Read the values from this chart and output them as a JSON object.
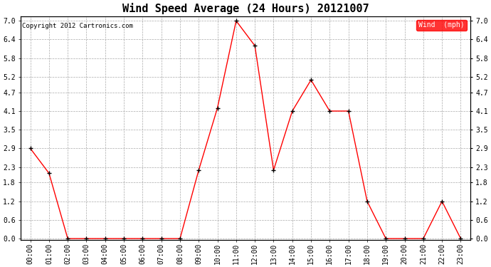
{
  "title": "Wind Speed Average (24 Hours) 20121007",
  "copyright_text": "Copyright 2012 Cartronics.com",
  "legend_label": "Wind  (mph)",
  "x_labels": [
    "00:00",
    "01:00",
    "02:00",
    "03:00",
    "04:00",
    "05:00",
    "06:00",
    "07:00",
    "08:00",
    "09:00",
    "10:00",
    "11:00",
    "12:00",
    "13:00",
    "14:00",
    "15:00",
    "16:00",
    "17:00",
    "18:00",
    "19:00",
    "20:00",
    "21:00",
    "22:00",
    "23:00"
  ],
  "y_values": [
    2.9,
    2.1,
    0.0,
    0.0,
    0.0,
    0.0,
    0.0,
    0.0,
    0.0,
    2.2,
    4.2,
    7.0,
    6.2,
    2.2,
    4.1,
    5.1,
    4.1,
    4.1,
    1.2,
    0.0,
    0.0,
    0.0,
    1.2,
    0.0
  ],
  "y_ticks": [
    0.0,
    0.6,
    1.2,
    1.8,
    2.3,
    2.9,
    3.5,
    4.1,
    4.7,
    5.2,
    5.8,
    6.4,
    7.0
  ],
  "ylim": [
    -0.05,
    7.15
  ],
  "line_color": "red",
  "marker_color": "black",
  "background_color": "white",
  "grid_color": "#aaaaaa",
  "title_fontsize": 11,
  "tick_fontsize": 7,
  "copyright_fontsize": 6.5,
  "legend_bg_color": "red",
  "legend_text_color": "white",
  "legend_fontsize": 7
}
